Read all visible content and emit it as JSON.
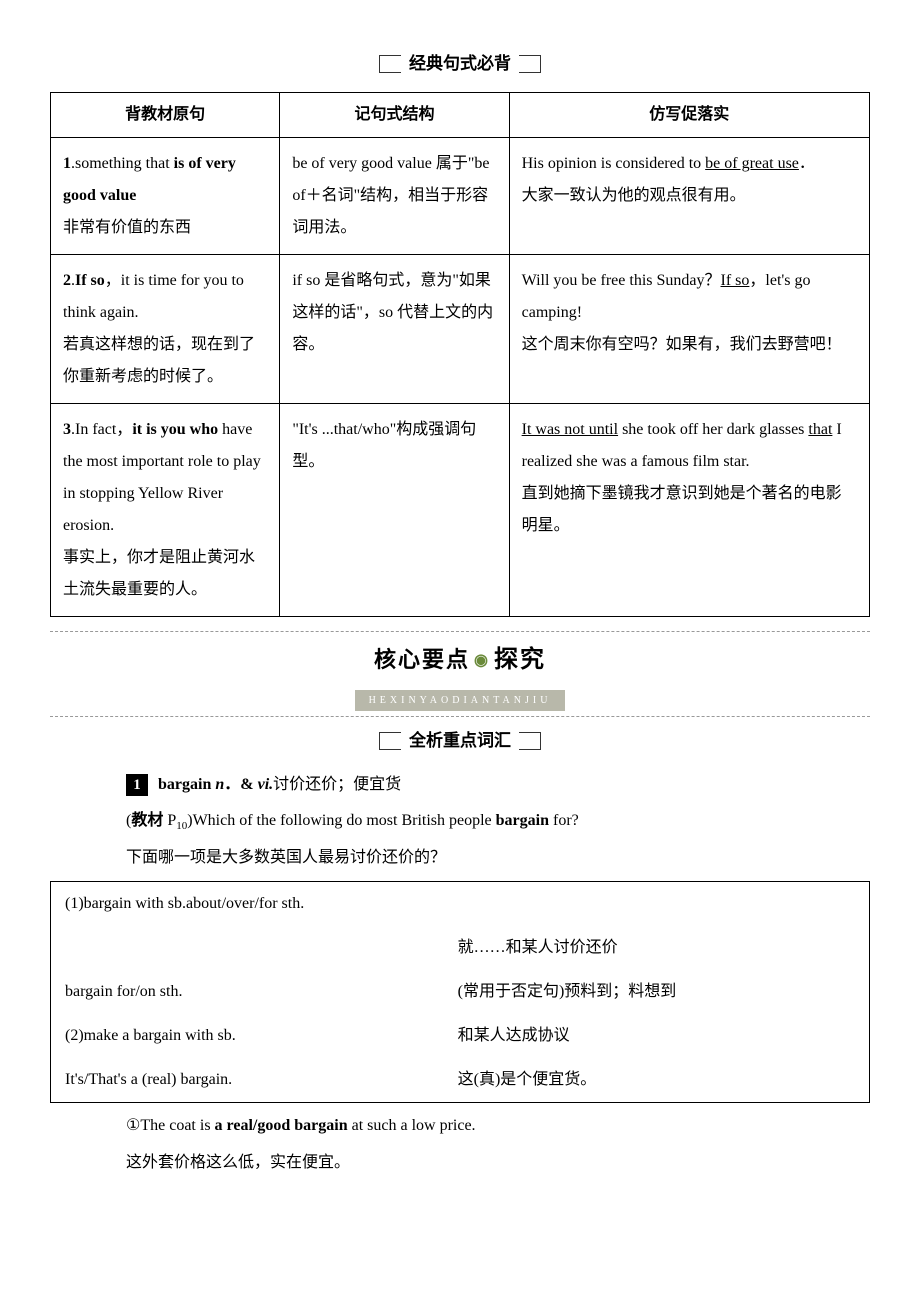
{
  "headings": {
    "classic_patterns": "经典句式必背",
    "key_vocab": "全析重点词汇"
  },
  "banner": {
    "left": "核心要点",
    "right": "探究",
    "pinyin": "HEXINYAODIANTANJIU"
  },
  "table": {
    "headers": {
      "col1": "背教材原句",
      "col2": "记句式结构",
      "col3": "仿写促落实"
    },
    "rows": [
      {
        "c1_html": "<span class='bold'>1</span>.something that <span class='bold'>is of very good value</span><br>非常有价值的东西",
        "c2_html": "be of very good value 属于\"be of＋名词\"结构，相当于形容词用法。",
        "c3_html": "His opinion is considered to <u>be of great use</u>．<br>大家一致认为他的观点很有用。"
      },
      {
        "c1_html": "<span class='bold'>2</span>.<span class='bold'>If so</span>，it is time for you to think again.<br>若真这样想的话，现在到了你重新考虑的时候了。",
        "c2_html": "if so 是省略句式，意为\"如果这样的话\"，so 代替上文的内容。",
        "c3_html": "Will you be free this Sunday？<u>If so</u>，let's go camping!<br>这个周末你有空吗？如果有，我们去野营吧！"
      },
      {
        "c1_html": "<span class='bold'>3</span>.In fact，<span class='bold'>it is you who</span> have the most important role to play in stopping Yellow River erosion.<br>事实上，你才是阻止黄河水土流失最重要的人。",
        "c2_html": "\"It's ...that/who\"构成强调句型。",
        "c3_html": "<u>It was not until</u> she took off her dark glasses <u>that</u> I realized she was a famous film star.<br>直到她摘下墨镜我才意识到她是个著名的电影明星。"
      }
    ]
  },
  "entry": {
    "num": "1",
    "headword_html": "<span class='bold'>bargain <span class='ital'>n</span>．&amp; <span class='ital'>vi.</span></span>讨价还价；便宜货",
    "source_html": "(<span class='kai'>教材</span> P<span class='sub'>10</span>)Which of the following do most British people <span class='bold'>bargain</span> for?",
    "source_zh": "下面哪一项是大多数英国人最易讨价还价的？",
    "sentence1": "①The coat is <span class='bold'>a real/good bargain</span> at such a low price.",
    "sentence1_zh": "这外套价格这么低，实在便宜。"
  },
  "defs": [
    {
      "l": "(1)bargain with sb.about/over/for sth.",
      "r": ""
    },
    {
      "l": "",
      "r": "就……和某人讨价还价"
    },
    {
      "l": "bargain for/on sth.",
      "r": "(常用于否定句)预料到；料想到"
    },
    {
      "l": "(2)make a bargain with sb.",
      "r": "和某人达成协议"
    },
    {
      "l": "It's/That's a (real) bargain.",
      "r": "这(真)是个便宜货。"
    }
  ]
}
